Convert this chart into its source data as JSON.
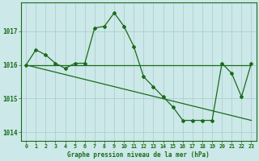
{
  "title": "Graphe pression niveau de la mer (hPa)",
  "background_color": "#cce8e8",
  "grid_color": "#a8cccc",
  "line_color": "#1a6b1a",
  "series_main": {
    "x": [
      0,
      1,
      2,
      3,
      4,
      5,
      6,
      7,
      8,
      9,
      10,
      11,
      12,
      13,
      14,
      15,
      16,
      17,
      18,
      19,
      20,
      21,
      22,
      23
    ],
    "y": [
      1016.0,
      1016.45,
      1016.3,
      1016.05,
      1015.9,
      1016.05,
      1016.05,
      1017.1,
      1017.15,
      1017.55,
      1017.15,
      1016.55,
      1015.65,
      1015.35,
      1015.05,
      1014.75,
      1014.35,
      1014.35,
      1014.35,
      1014.35,
      1016.05,
      1015.75,
      1015.05,
      1016.05
    ]
  },
  "series_horiz": {
    "x": [
      0,
      23
    ],
    "y": [
      1016.0,
      1016.0
    ]
  },
  "series_diag": {
    "x": [
      0,
      23
    ],
    "y": [
      1016.0,
      1014.35
    ]
  },
  "ylim": [
    1013.75,
    1017.85
  ],
  "yticks": [
    1014,
    1015,
    1016,
    1017
  ],
  "xticks": [
    0,
    1,
    2,
    3,
    4,
    5,
    6,
    7,
    8,
    9,
    10,
    11,
    12,
    13,
    14,
    15,
    16,
    17,
    18,
    19,
    20,
    21,
    22,
    23
  ],
  "marker": "D",
  "markersize": 2.0,
  "linewidth": 0.9,
  "tick_fontsize": 4.8,
  "ytick_fontsize": 5.5,
  "title_fontsize": 5.5
}
